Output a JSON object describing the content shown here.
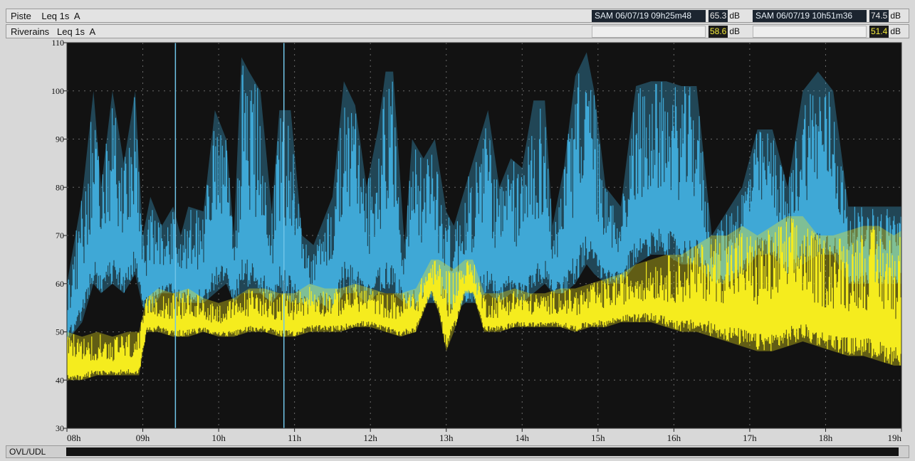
{
  "header": {
    "row1_label": "Piste    Leq 1s  A",
    "row2_label": "Riverains   Leq 1s  A",
    "cursor1": {
      "time": "SAM 06/07/19 09h25m48",
      "piste_value": "65.3",
      "riverains_value": "58.6",
      "unit": "dB"
    },
    "cursor2": {
      "time": "SAM 06/07/19 10h51m36",
      "piste_value": "74.5",
      "riverains_value": "51.4",
      "unit": "dB"
    }
  },
  "footer": {
    "label": "OVL/UDL"
  },
  "colors": {
    "background": "#121212",
    "piste": "#3fa8d6",
    "riverains": "#f5ec1e",
    "grid": "#6a6a6a",
    "cursor": "#6fc4e8"
  },
  "chart_data": {
    "type": "area",
    "title": "",
    "xlabel": "",
    "ylabel": "",
    "x_ticks": [
      "08h",
      "09h",
      "10h",
      "11h",
      "12h",
      "13h",
      "14h",
      "15h",
      "16h",
      "17h",
      "18h",
      "19h"
    ],
    "y_ticks": [
      "30",
      "40",
      "50",
      "60",
      "70",
      "80",
      "90",
      "100",
      "110"
    ],
    "xlim": [
      8,
      19
    ],
    "ylim": [
      30,
      110
    ],
    "grid": true,
    "cursors_h": [
      9.43,
      10.86
    ],
    "series": [
      {
        "name": "Piste",
        "color": "#3fa8d6",
        "x": [
          8.0,
          8.2,
          8.35,
          8.45,
          8.6,
          8.75,
          8.9,
          9.0,
          9.1,
          9.25,
          9.4,
          9.5,
          9.6,
          9.8,
          9.95,
          10.1,
          10.2,
          10.3,
          10.4,
          10.55,
          10.7,
          10.8,
          10.95,
          11.1,
          11.25,
          11.35,
          11.5,
          11.65,
          11.8,
          11.95,
          12.1,
          12.2,
          12.3,
          12.45,
          12.55,
          12.7,
          12.85,
          13.0,
          13.1,
          13.25,
          13.4,
          13.55,
          13.7,
          13.85,
          14.0,
          14.15,
          14.3,
          14.4,
          14.55,
          14.7,
          14.85,
          14.95,
          15.1,
          15.3,
          15.5,
          15.7,
          15.9,
          16.1,
          16.3,
          16.5,
          16.7,
          16.9,
          17.1,
          17.3,
          17.5,
          17.7,
          17.9,
          18.1,
          18.3,
          18.5,
          18.7,
          18.9,
          19.0
        ],
        "upper": [
          60,
          78,
          100,
          80,
          100,
          85,
          100,
          70,
          78,
          72,
          76,
          70,
          76,
          75,
          96,
          90,
          70,
          107,
          104,
          100,
          75,
          96,
          96,
          70,
          68,
          72,
          78,
          102,
          97,
          80,
          92,
          104,
          104,
          68,
          90,
          86,
          90,
          75,
          72,
          80,
          88,
          96,
          80,
          86,
          84,
          98,
          98,
          72,
          84,
          103,
          108,
          100,
          80,
          76,
          101,
          102,
          102,
          101,
          101,
          70,
          75,
          80,
          92,
          92,
          80,
          100,
          104,
          100,
          76,
          76,
          76,
          76,
          76
        ],
        "lower": [
          48,
          52,
          60,
          58,
          60,
          58,
          62,
          55,
          54,
          58,
          58,
          56,
          56,
          56,
          58,
          60,
          56,
          58,
          58,
          58,
          56,
          58,
          56,
          56,
          54,
          56,
          54,
          58,
          58,
          56,
          58,
          58,
          58,
          56,
          54,
          56,
          56,
          56,
          54,
          56,
          56,
          58,
          56,
          58,
          56,
          58,
          60,
          58,
          58,
          60,
          64,
          62,
          60,
          60,
          64,
          66,
          66,
          64,
          64,
          60,
          60,
          62,
          66,
          66,
          62,
          64,
          66,
          66,
          60,
          60,
          60,
          60,
          60
        ]
      },
      {
        "name": "Riverains",
        "color": "#f5ec1e",
        "x": [
          8.0,
          8.2,
          8.4,
          8.6,
          8.8,
          8.95,
          9.05,
          9.2,
          9.4,
          9.6,
          9.8,
          10.0,
          10.2,
          10.4,
          10.6,
          10.8,
          11.0,
          11.2,
          11.4,
          11.6,
          11.8,
          12.0,
          12.2,
          12.4,
          12.6,
          12.8,
          12.9,
          13.0,
          13.1,
          13.25,
          13.35,
          13.5,
          13.7,
          13.9,
          14.1,
          14.3,
          14.5,
          14.7,
          14.9,
          15.1,
          15.3,
          15.5,
          15.7,
          15.9,
          16.1,
          16.3,
          16.5,
          16.7,
          16.9,
          17.1,
          17.3,
          17.5,
          17.7,
          17.9,
          18.1,
          18.3,
          18.5,
          18.7,
          18.9,
          19.0
        ],
        "upper": [
          50,
          49,
          50,
          49,
          50,
          50,
          57,
          59,
          58,
          59,
          57,
          56,
          57,
          59,
          59,
          58,
          58,
          60,
          59,
          59,
          60,
          59,
          58,
          58,
          59,
          65,
          65,
          64,
          63,
          65,
          65,
          58,
          58,
          59,
          58,
          58,
          59,
          59,
          60,
          61,
          62,
          64,
          65,
          66,
          66,
          68,
          70,
          70,
          72,
          70,
          72,
          74,
          74,
          70,
          70,
          71,
          72,
          72,
          70,
          71
        ],
        "lower": [
          40,
          40,
          41,
          41,
          41,
          41,
          50,
          50,
          49,
          49,
          50,
          49,
          49,
          50,
          50,
          49,
          49,
          50,
          50,
          50,
          51,
          51,
          50,
          49,
          50,
          58,
          54,
          46,
          50,
          58,
          58,
          50,
          50,
          51,
          51,
          51,
          51,
          50,
          51,
          51,
          52,
          52,
          52,
          51,
          50,
          50,
          49,
          48,
          47,
          46,
          46,
          47,
          48,
          47,
          46,
          45,
          45,
          44,
          43,
          43
        ]
      }
    ]
  }
}
